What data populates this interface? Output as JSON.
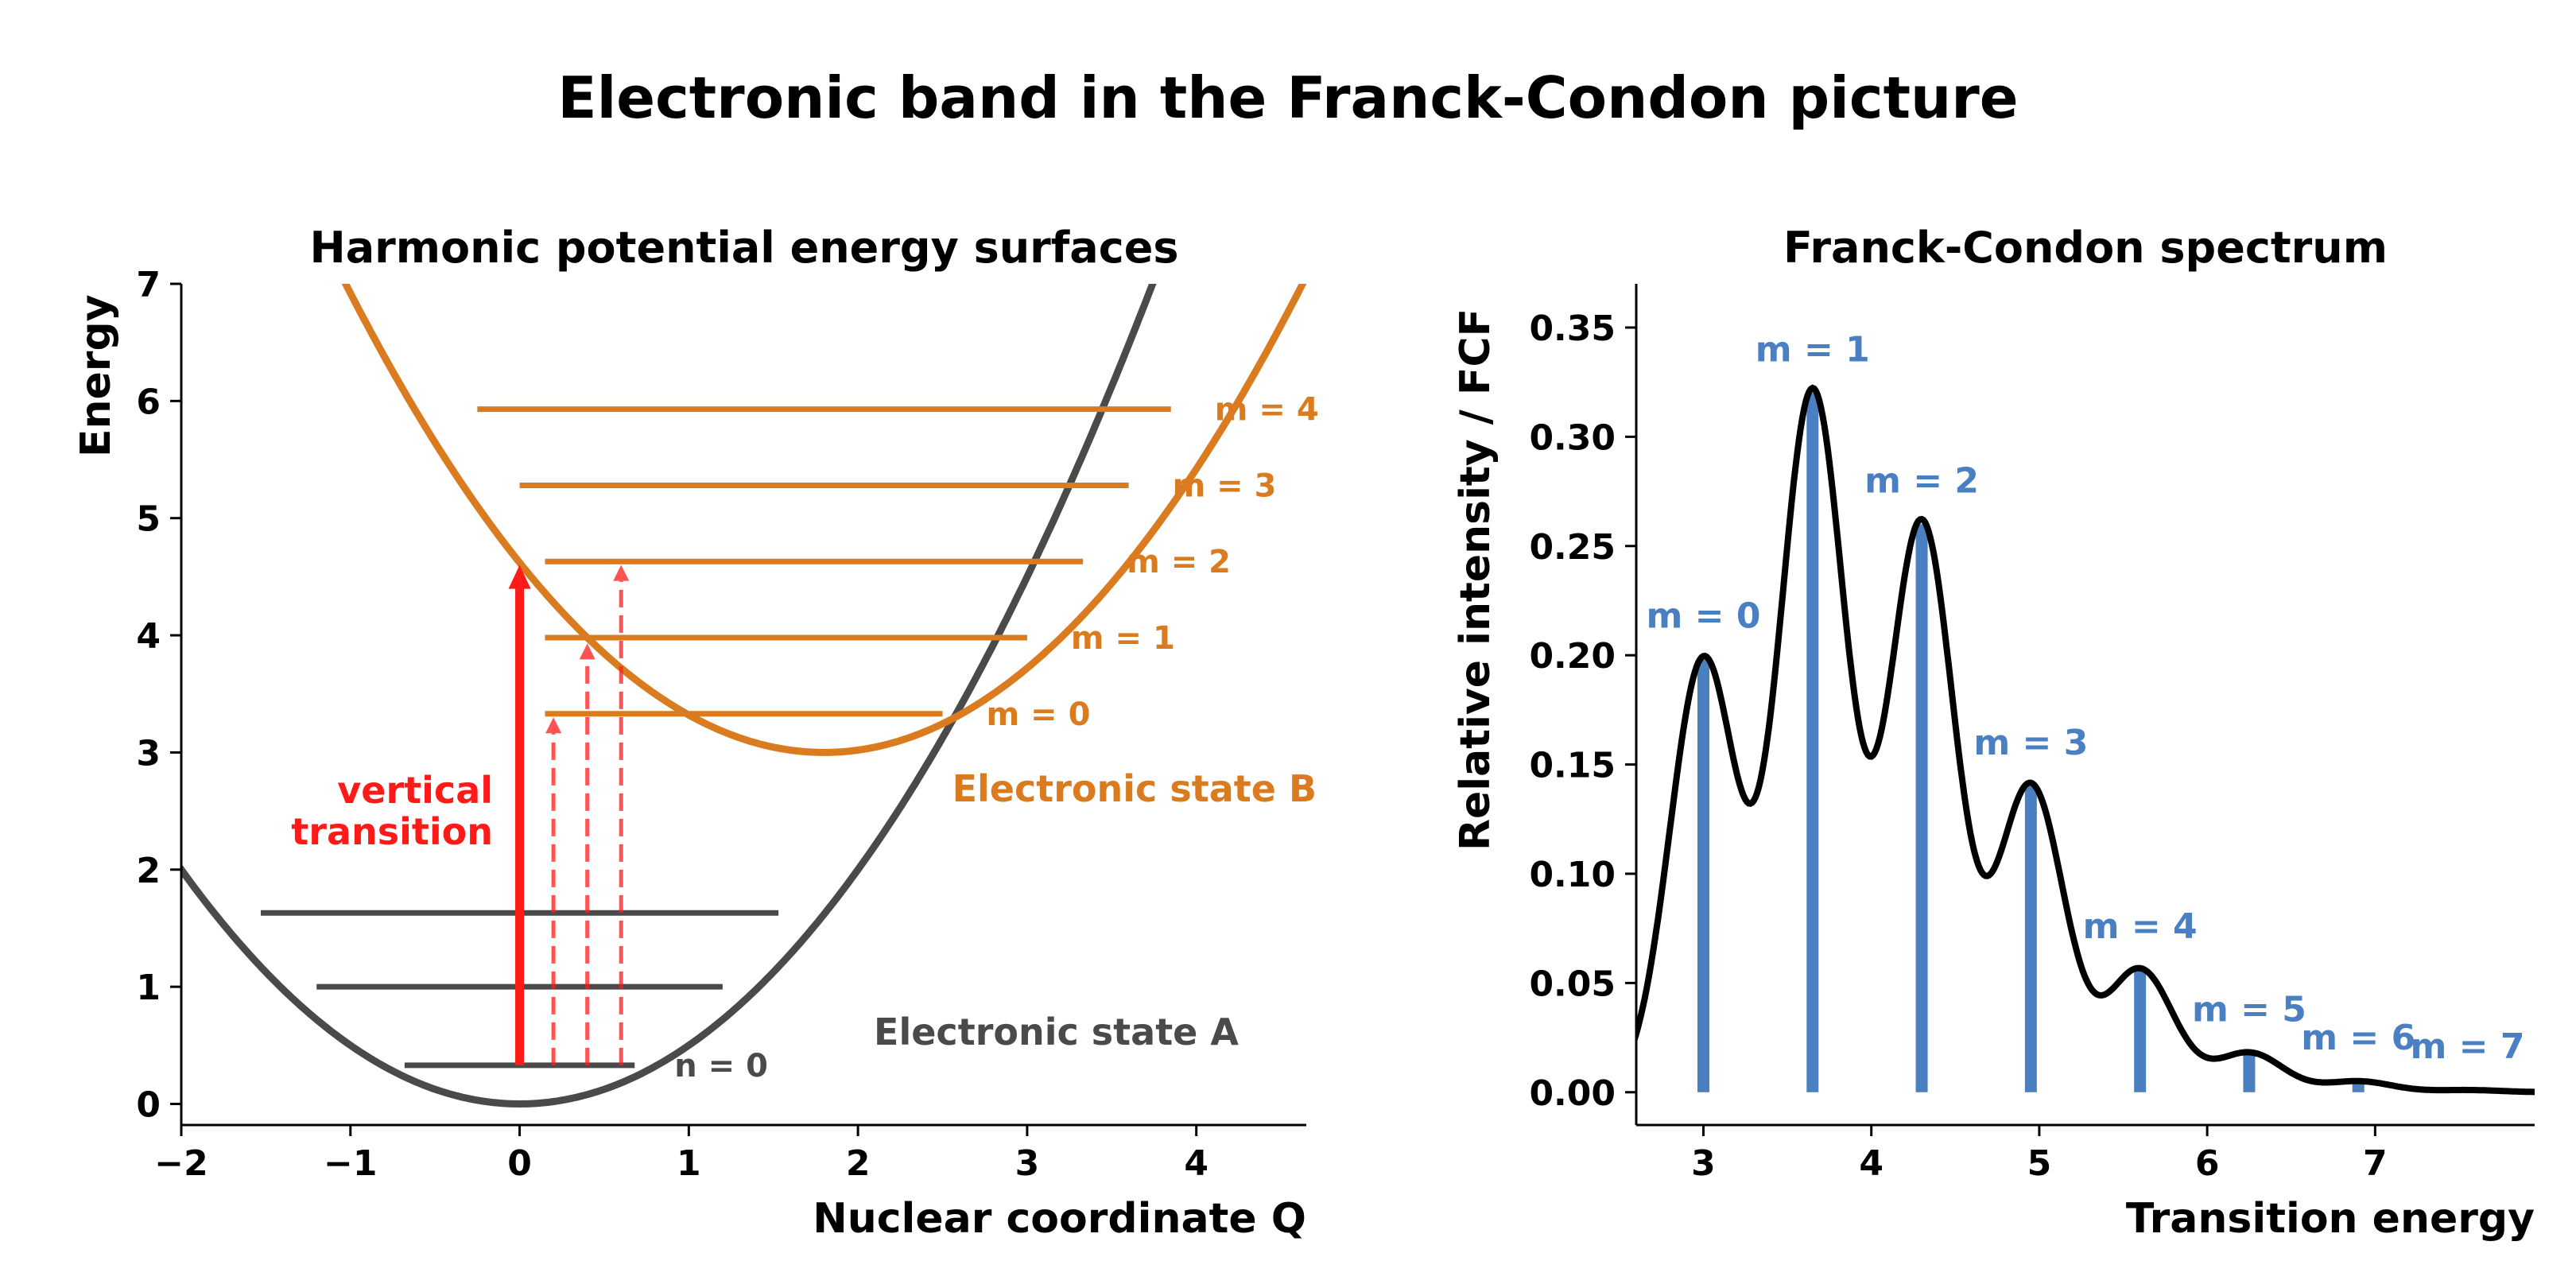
{
  "figure": {
    "title": "Electronic band in the Franck-Condon picture"
  },
  "colors": {
    "state_a": "#4a4a4a",
    "state_b": "#d97b1e",
    "transition": "#ff1a1a",
    "stick": "#4a7fc1",
    "envelope": "#000000"
  },
  "chart_data": [
    {
      "type": "line",
      "title": "Harmonic potential energy surfaces",
      "xlabel": "Nuclear coordinate Q",
      "ylabel": "Energy",
      "xlim": [
        -2,
        4.65
      ],
      "ylim": [
        -0.18,
        7
      ],
      "xticks": [
        -2,
        -1,
        0,
        1,
        2,
        3,
        4
      ],
      "yticks": [
        0,
        1,
        2,
        3,
        4,
        5,
        6,
        7
      ],
      "grid": false,
      "series": [
        {
          "name": "Electronic state A",
          "equation": "E = 0.5*Q^2",
          "q0": 0,
          "e0": 0,
          "k": 1
        },
        {
          "name": "Electronic state B",
          "equation": "E = 3 + 0.5*(Q-1.8)^2",
          "q0": 1.8,
          "e0": 3,
          "k": 1
        }
      ],
      "levels_a": [
        {
          "label": "n = 0",
          "energy": 0.33,
          "x": [
            -0.68,
            0.68
          ]
        },
        {
          "label": "",
          "energy": 1.0,
          "x": [
            -1.2,
            1.2
          ]
        },
        {
          "label": "",
          "energy": 1.63,
          "x": [
            -1.53,
            1.53
          ]
        }
      ],
      "levels_b": [
        {
          "label": "m = 0",
          "energy": 3.33,
          "x": [
            0.15,
            2.5
          ]
        },
        {
          "label": "m = 1",
          "energy": 3.98,
          "x": [
            0.15,
            3.0
          ]
        },
        {
          "label": "m = 2",
          "energy": 4.63,
          "x": [
            0.15,
            3.33
          ]
        },
        {
          "label": "m = 3",
          "energy": 5.28,
          "x": [
            0.0,
            3.6
          ]
        },
        {
          "label": "m = 4",
          "energy": 5.93,
          "x": [
            -0.25,
            3.85
          ]
        }
      ],
      "transitions": [
        {
          "q": 0.0,
          "from": 0.33,
          "to": 4.6,
          "style": "solid"
        },
        {
          "q": 0.2,
          "from": 0.33,
          "to": 3.3,
          "style": "dashed"
        },
        {
          "q": 0.4,
          "from": 0.33,
          "to": 3.93,
          "style": "dashed"
        },
        {
          "q": 0.6,
          "from": 0.33,
          "to": 4.6,
          "style": "dashed"
        }
      ],
      "annotations": {
        "vertical_transition": [
          "vertical",
          "transition"
        ],
        "state_a": "Electronic state A",
        "state_b": "Electronic state B"
      }
    },
    {
      "type": "bar",
      "title": "Franck-Condon spectrum",
      "xlabel": "Transition energy",
      "ylabel": "Relative intensity / FCF",
      "xlim": [
        2.6,
        7.95
      ],
      "ylim": [
        -0.015,
        0.37
      ],
      "xticks": [
        3,
        4,
        5,
        6,
        7
      ],
      "yticks": [
        "0.00",
        "0.05",
        "0.10",
        "0.15",
        "0.20",
        "0.25",
        "0.30",
        "0.35"
      ],
      "grid": false,
      "sticks": [
        {
          "label": "m = 0",
          "x": 3.0,
          "value": 0.198
        },
        {
          "label": "m = 1",
          "x": 3.65,
          "value": 0.32
        },
        {
          "label": "m = 2",
          "x": 4.3,
          "value": 0.26
        },
        {
          "label": "m = 3",
          "x": 4.95,
          "value": 0.14
        },
        {
          "label": "m = 4",
          "x": 5.6,
          "value": 0.056
        },
        {
          "label": "m = 5",
          "x": 6.25,
          "value": 0.018
        },
        {
          "label": "m = 6",
          "x": 6.9,
          "value": 0.005
        },
        {
          "label": "m = 7",
          "x": 7.55,
          "value": 0.001
        }
      ],
      "envelope": {
        "type": "sum of gaussians",
        "sigma": 0.2
      }
    }
  ]
}
